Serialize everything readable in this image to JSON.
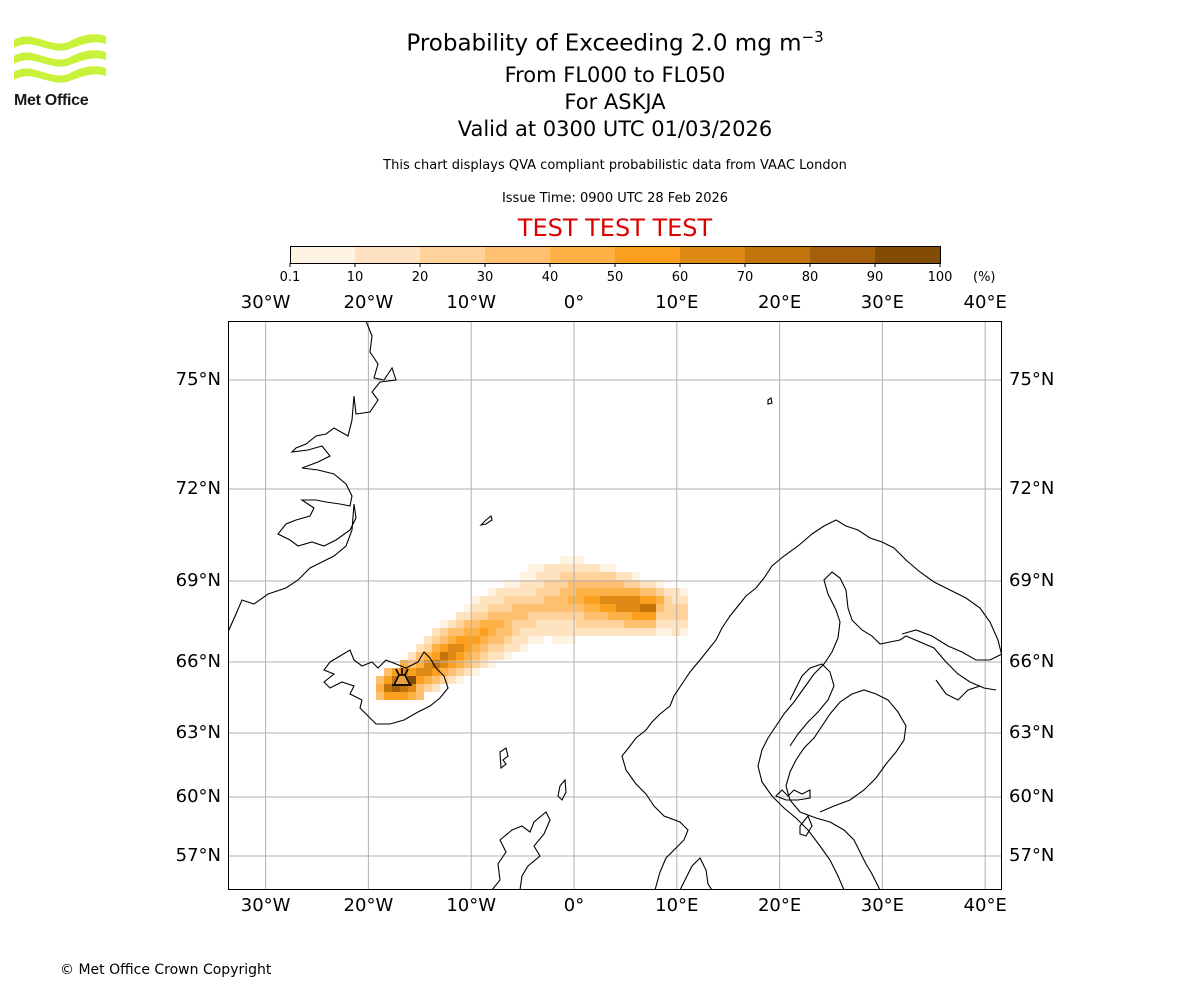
{
  "header": {
    "brand": "Met Office",
    "title_main": "Probability of Exceeding 2.0 mg m",
    "title_sup": "−3",
    "level_range": "From FL000 to FL050",
    "volcano_line": "For ASKJA",
    "valid_line": "Valid at 0300 UTC 01/03/2026",
    "description": "This chart displays QVA compliant probabilistic data from VAAC London",
    "issue_time": "Issue Time: 0900 UTC 28 Feb 2026",
    "warning": "TEST TEST TEST"
  },
  "colorbar": {
    "ticks": [
      "0.1",
      "10",
      "20",
      "30",
      "40",
      "50",
      "60",
      "70",
      "80",
      "90",
      "100"
    ],
    "unit": "(%)",
    "colors": [
      "#fff4e3",
      "#ffe3c0",
      "#ffd29b",
      "#ffc070",
      "#feb145",
      "#fa9f1e",
      "#de8a14",
      "#c2750c",
      "#a36008",
      "#834c06",
      "#633a06"
    ]
  },
  "map": {
    "lon_labels": [
      "30°W",
      "20°W",
      "10°W",
      "0°",
      "10°E",
      "20°E",
      "30°E",
      "40°E"
    ],
    "lat_labels": [
      "75°N",
      "72°N",
      "69°N",
      "66°N",
      "63°N",
      "60°N",
      "57°N"
    ],
    "lat_values": [
      75,
      72,
      69,
      66,
      63,
      60,
      57
    ],
    "lon_values": [
      -30,
      -20,
      -10,
      0,
      10,
      20,
      30,
      40
    ],
    "volcano_marker": "volcano-icon",
    "colors": {
      "grid": "#b0b0b0",
      "coast": "#000000"
    }
  },
  "footer": {
    "copyright": "© Met Office Crown Copyright"
  }
}
